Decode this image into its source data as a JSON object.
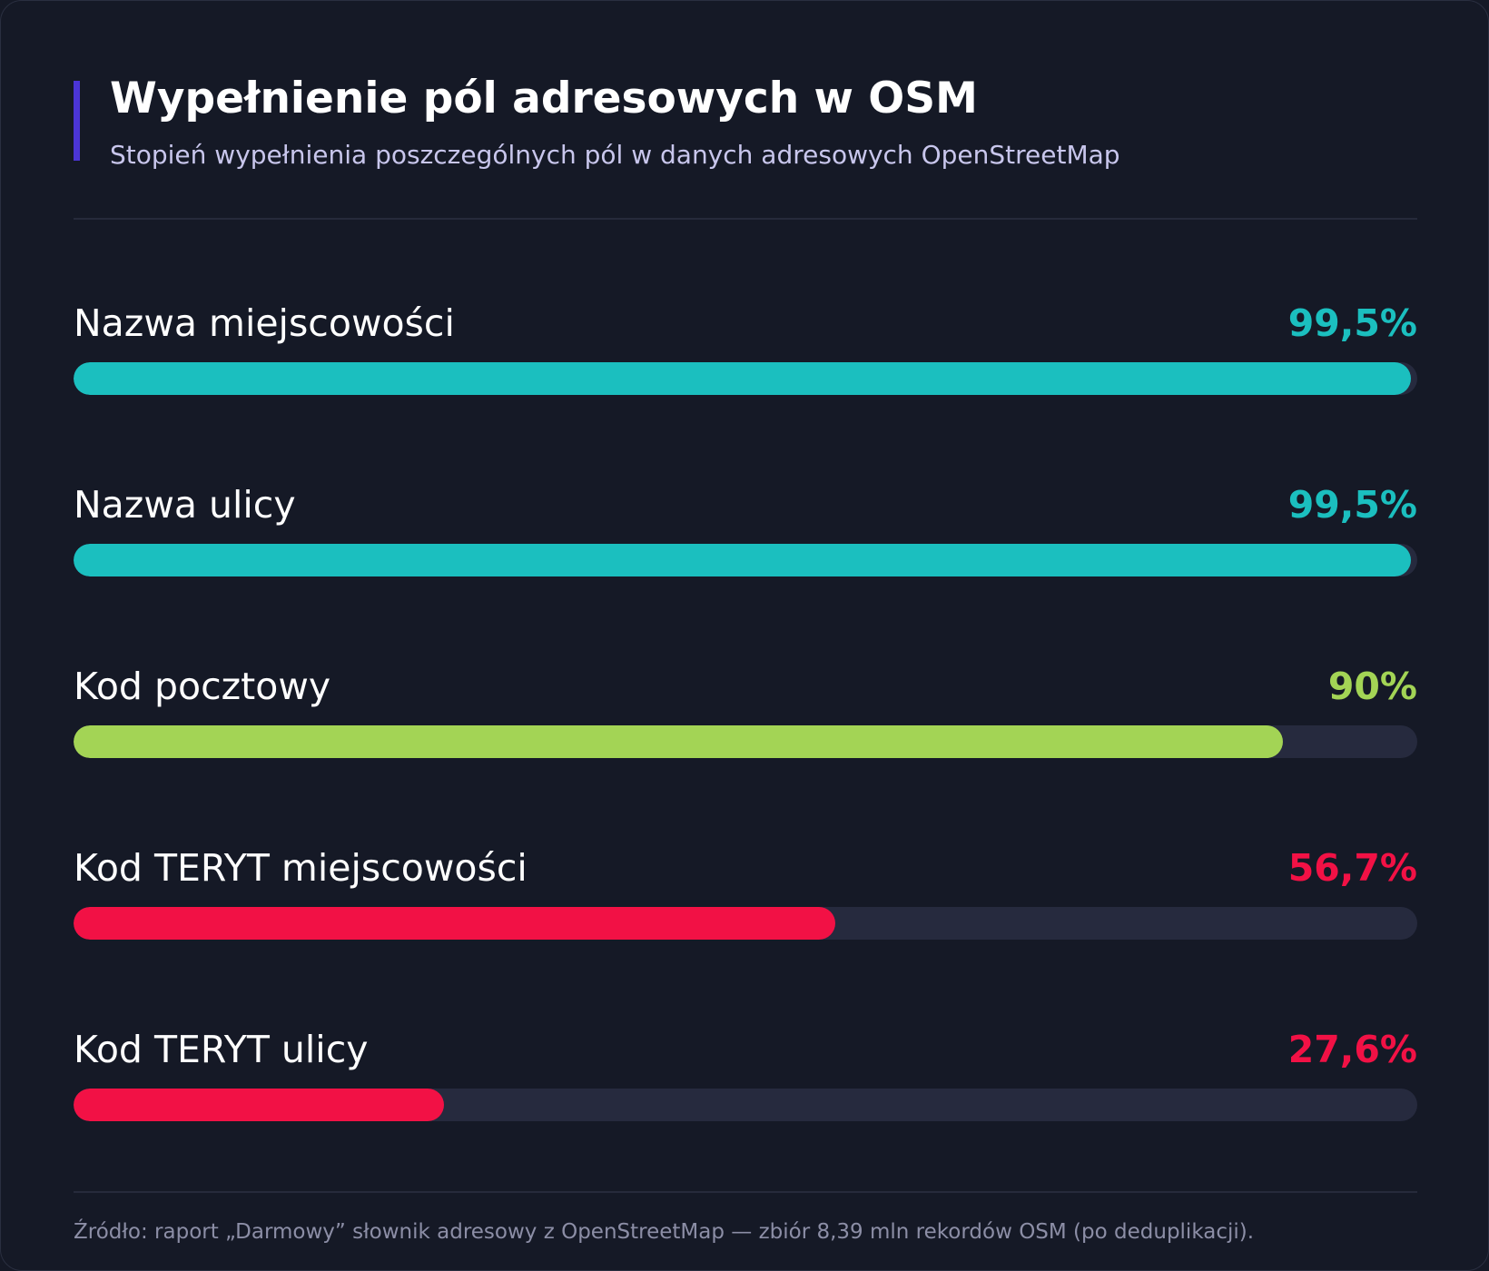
{
  "header": {
    "title": "Wypełnienie pól adresowych w OSM",
    "subtitle": "Stopień wypełnienia poszczególnych pól w danych adresowych OpenStreetMap"
  },
  "colors": {
    "accent": "#4b35d6",
    "high": "#1bbfbf",
    "medium": "#a3d455",
    "low": "#f21145",
    "track": "#262a3e",
    "background": "#151926"
  },
  "chart_data": {
    "type": "bar",
    "orientation": "horizontal",
    "title": "Wypełnienie pól adresowych w OSM",
    "subtitle": "Stopień wypełnienia poszczególnych pól w danych adresowych OpenStreetMap",
    "xlim": [
      0,
      100
    ],
    "grid": false,
    "categories": [
      "Nazwa miejscowości",
      "Nazwa ulicy",
      "Kod pocztowy",
      "Kod TERYT miejscowości",
      "Kod TERYT ulicy"
    ],
    "values": [
      99.5,
      99.5,
      90,
      56.7,
      27.6
    ],
    "value_labels": [
      "99,5%",
      "99,5%",
      "90%",
      "56,7%",
      "27,6%"
    ],
    "bar_colors": [
      "#1bbfbf",
      "#1bbfbf",
      "#a3d455",
      "#f21145",
      "#f21145"
    ]
  },
  "footer": {
    "source": "Źródło: raport „Darmowy” słownik adresowy z OpenStreetMap — zbiór 8,39 mln rekordów OSM (po deduplikacji)."
  }
}
